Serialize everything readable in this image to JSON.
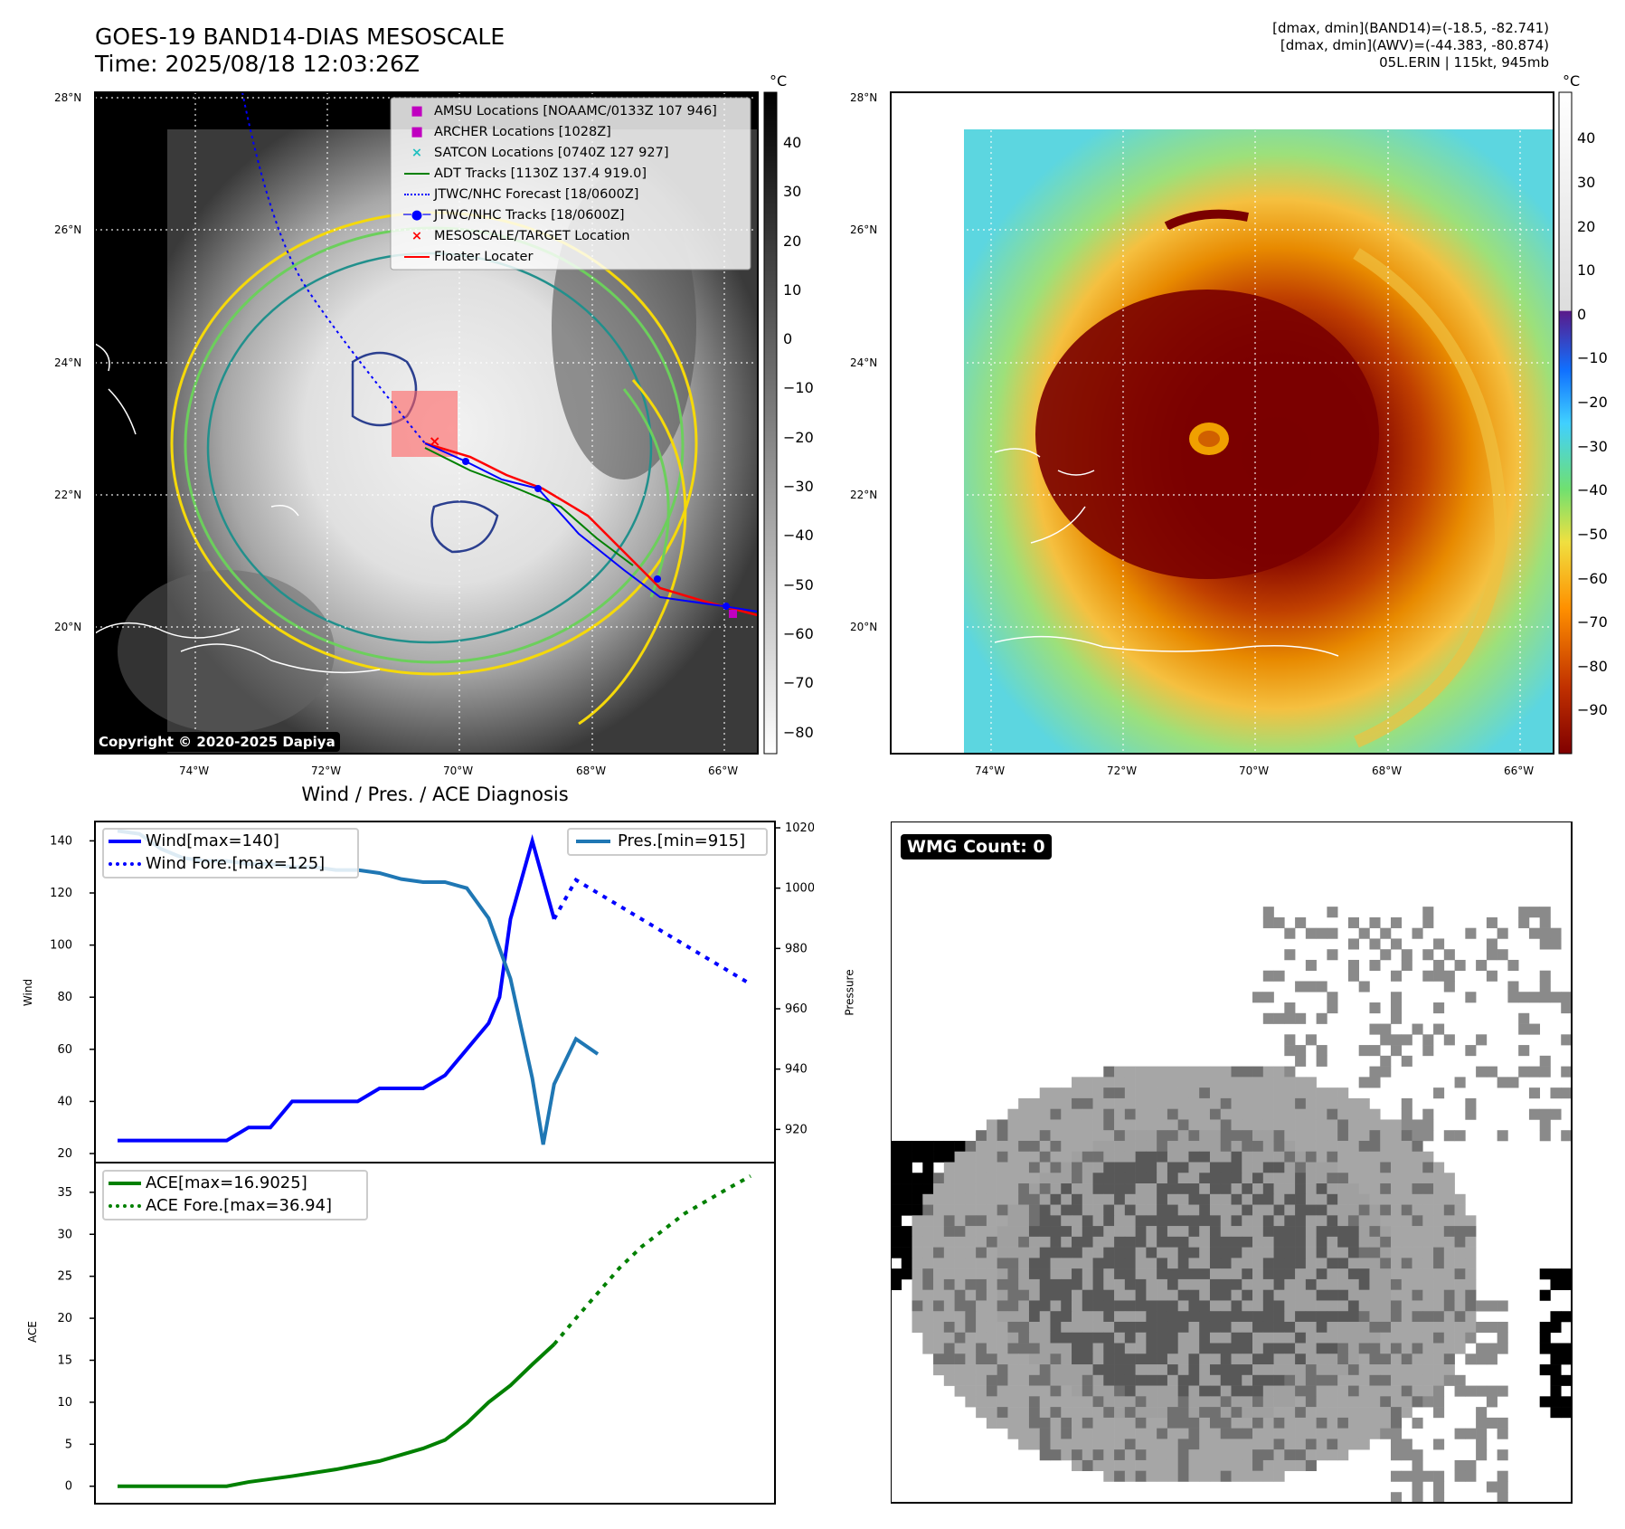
{
  "header": {
    "title": "GOES-19 BAND14-DIAS MESOSCALE",
    "time": "Time: 2025/08/18 12:03:26Z",
    "info_lines": [
      "[dmax, dmin](BAND14)=(-18.5, -82.741)",
      "[dmax, dmin](AWV)=(-44.383, -80.874)",
      "05L.ERIN | 115kt, 945mb"
    ]
  },
  "ir_map": {
    "lat_labels": [
      "28°N",
      "26°N",
      "24°N",
      "22°N",
      "20°N"
    ],
    "lon_labels": [
      "74°W",
      "72°W",
      "70°W",
      "68°W",
      "66°W"
    ],
    "legend": [
      {
        "label": "AMSU Locations [NOAAMC/0133Z 107 946]",
        "marker": "square",
        "color": "#c000c0"
      },
      {
        "label": "ARCHER Locations [1028Z]",
        "marker": "square",
        "color": "#c000c0"
      },
      {
        "label": "SATCON Locations [0740Z 127 927]",
        "marker": "x",
        "color": "#20c0c0"
      },
      {
        "label": "ADT Tracks [1130Z 137.4 919.0]",
        "marker": "line",
        "color": "#008000"
      },
      {
        "label": "JTWC/NHC Forecast [18/0600Z]",
        "marker": "dotted",
        "color": "#0000ff"
      },
      {
        "label": "JTWC/NHC Tracks [18/0600Z]",
        "marker": "line-dot",
        "color": "#0000ff"
      },
      {
        "label": "MESOSCALE/TARGET Location",
        "marker": "x",
        "color": "#ff0000"
      },
      {
        "label": "Floater Locater",
        "marker": "line",
        "color": "#ff0000"
      }
    ],
    "copyright": "Copyright © 2020-2025 Dapiya",
    "colorbar_unit": "°C",
    "colorbar_ticks": [
      "40",
      "30",
      "20",
      "10",
      "0",
      "−10",
      "−20",
      "−30",
      "−40",
      "−50",
      "−60",
      "−70",
      "−80"
    ]
  },
  "awv_map": {
    "lat_labels": [
      "28°N",
      "26°N",
      "24°N",
      "22°N",
      "20°N"
    ],
    "lon_labels": [
      "74°W",
      "72°W",
      "70°W",
      "68°W",
      "66°W"
    ],
    "colorbar_unit": "°C",
    "colorbar_ticks": [
      "40",
      "30",
      "20",
      "10",
      "0",
      "−10",
      "−20",
      "−30",
      "−40",
      "−50",
      "−60",
      "−70",
      "−80",
      "−90"
    ]
  },
  "wmg": {
    "label": "WMG Count: 0"
  },
  "chart_data": [
    {
      "type": "line",
      "title": "Wind / Pres. / ACE Diagnosis",
      "ylabel": "Wind",
      "ylim": [
        20,
        145
      ],
      "y2label": "Pressure",
      "y2lim": [
        912,
        1020
      ],
      "yticks": [
        "20",
        "40",
        "60",
        "80",
        "100",
        "120",
        "140"
      ],
      "y2ticks": [
        "920",
        "940",
        "960",
        "980",
        "1000",
        "1020"
      ],
      "legend_left": [
        "Wind[max=140]",
        "Wind Fore.[max=125]"
      ],
      "legend_right": [
        "Pres.[min=915]"
      ],
      "series": [
        {
          "name": "Wind[max=140]",
          "color": "#0000ff",
          "style": "solid",
          "axis": "left",
          "x": [
            0,
            3,
            4,
            5,
            6,
            7,
            8,
            9,
            10,
            11,
            12,
            13,
            14,
            15,
            15.5,
            16,
            16.5,
            17,
            17.5,
            18,
            19,
            20
          ],
          "values": [
            25,
            25,
            25,
            25,
            30,
            30,
            40,
            40,
            40,
            40,
            45,
            45,
            45,
            50,
            55,
            60,
            65,
            70,
            80,
            110,
            140,
            110
          ]
        },
        {
          "name": "Wind Fore.[max=125]",
          "color": "#0000ff",
          "style": "dotted",
          "axis": "left",
          "x": [
            20,
            21,
            22,
            23,
            24,
            25,
            26,
            27,
            28,
            29
          ],
          "values": [
            110,
            125,
            120,
            115,
            110,
            105,
            100,
            95,
            90,
            85
          ]
        },
        {
          "name": "Pres.[min=915]",
          "color": "#1f77b4",
          "style": "solid",
          "axis": "right",
          "x": [
            0,
            1,
            2,
            3,
            4,
            5,
            6,
            7,
            8,
            9,
            10,
            11,
            12,
            13,
            14,
            15,
            16,
            17,
            18,
            19,
            19.5,
            20,
            21,
            22
          ],
          "values": [
            1019,
            1018,
            1013,
            1010,
            1009,
            1009,
            1008,
            1008,
            1007,
            1007,
            1006,
            1006,
            1005,
            1003,
            1002,
            1002,
            1000,
            990,
            970,
            937,
            915,
            935,
            950,
            945
          ]
        }
      ]
    },
    {
      "type": "line",
      "ylabel": "ACE",
      "ylim": [
        -1,
        38
      ],
      "yticks": [
        "0",
        "5",
        "10",
        "15",
        "20",
        "25",
        "30",
        "35"
      ],
      "legend": [
        "ACE[max=16.9025]",
        "ACE Fore.[max=36.94]"
      ],
      "series": [
        {
          "name": "ACE[max=16.9025]",
          "color": "#008000",
          "style": "solid",
          "x": [
            0,
            5,
            6,
            8,
            10,
            12,
            14,
            15,
            16,
            17,
            17.5,
            18,
            19,
            20
          ],
          "values": [
            0,
            0,
            0.5,
            1.2,
            2.0,
            3.0,
            4.5,
            5.5,
            7.5,
            10,
            11,
            12,
            14.5,
            16.9
          ]
        },
        {
          "name": "ACE Fore.[max=36.94]",
          "color": "#008000",
          "style": "dotted",
          "x": [
            20,
            21,
            22,
            23,
            24,
            25,
            26,
            27,
            28,
            29
          ],
          "values": [
            16.9,
            20,
            23,
            26,
            28.5,
            30.5,
            32.5,
            34,
            35.5,
            36.94
          ]
        }
      ]
    }
  ]
}
